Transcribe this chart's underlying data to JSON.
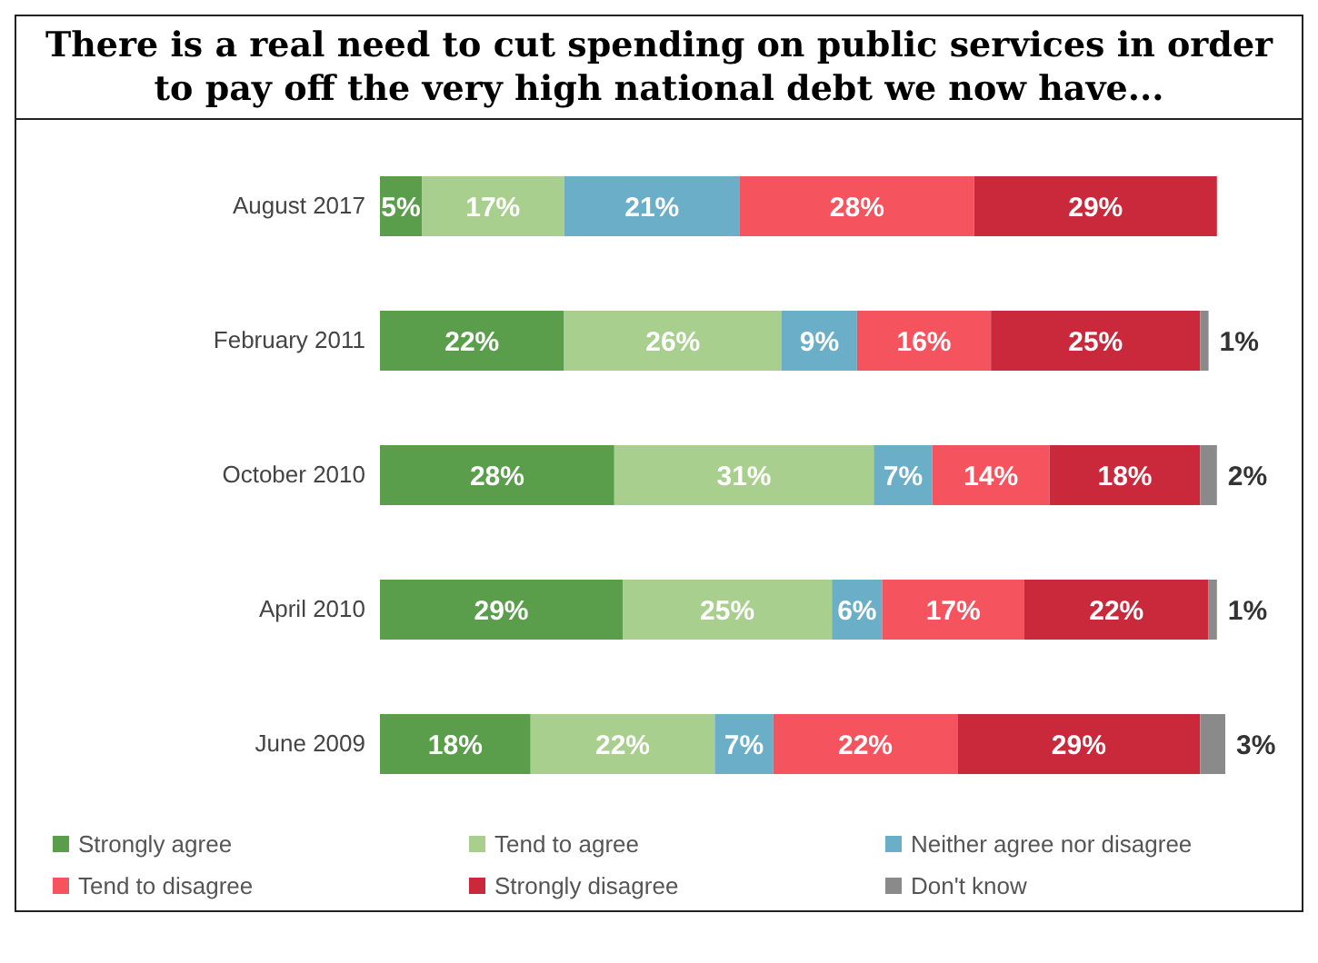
{
  "chart_data": {
    "type": "bar",
    "orientation": "horizontal",
    "stacked": true,
    "legend": "bottom",
    "title": "There is a real need to cut spending on public services in order to pay off the very high national debt we now have...",
    "categories": [
      "August 2017",
      "February 2011",
      "October 2010",
      "April 2010",
      "June 2009"
    ],
    "series": [
      {
        "name": "Strongly agree",
        "color": "#5a9e4b",
        "values": [
          5,
          22,
          28,
          29,
          18
        ],
        "value_labels": [
          "5%",
          "22%",
          "28%",
          "29%",
          "18%"
        ]
      },
      {
        "name": "Tend to agree",
        "color": "#a9cf8f",
        "values": [
          17,
          26,
          31,
          25,
          22
        ],
        "value_labels": [
          "17%",
          "26%",
          "31%",
          "25%",
          "22%"
        ]
      },
      {
        "name": "Neither agree nor disagree",
        "color": "#6aaec8",
        "values": [
          21,
          9,
          7,
          6,
          7
        ],
        "value_labels": [
          "21%",
          "9%",
          "7%",
          "6%",
          "7%"
        ]
      },
      {
        "name": "Tend to disagree",
        "color": "#f5545e",
        "values": [
          28,
          16,
          14,
          17,
          22
        ],
        "value_labels": [
          "28%",
          "16%",
          "14%",
          "17%",
          "22%"
        ]
      },
      {
        "name": "Strongly disagree",
        "color": "#c9293a",
        "values": [
          29,
          25,
          18,
          22,
          29
        ],
        "value_labels": [
          "29%",
          "25%",
          "18%",
          "22%",
          "29%"
        ]
      },
      {
        "name": "Don't know",
        "color": "#8a8a8a",
        "values": [
          null,
          1,
          2,
          1,
          3
        ],
        "value_labels": [
          null,
          "1%",
          "2%",
          "1%",
          "3%"
        ]
      }
    ]
  }
}
